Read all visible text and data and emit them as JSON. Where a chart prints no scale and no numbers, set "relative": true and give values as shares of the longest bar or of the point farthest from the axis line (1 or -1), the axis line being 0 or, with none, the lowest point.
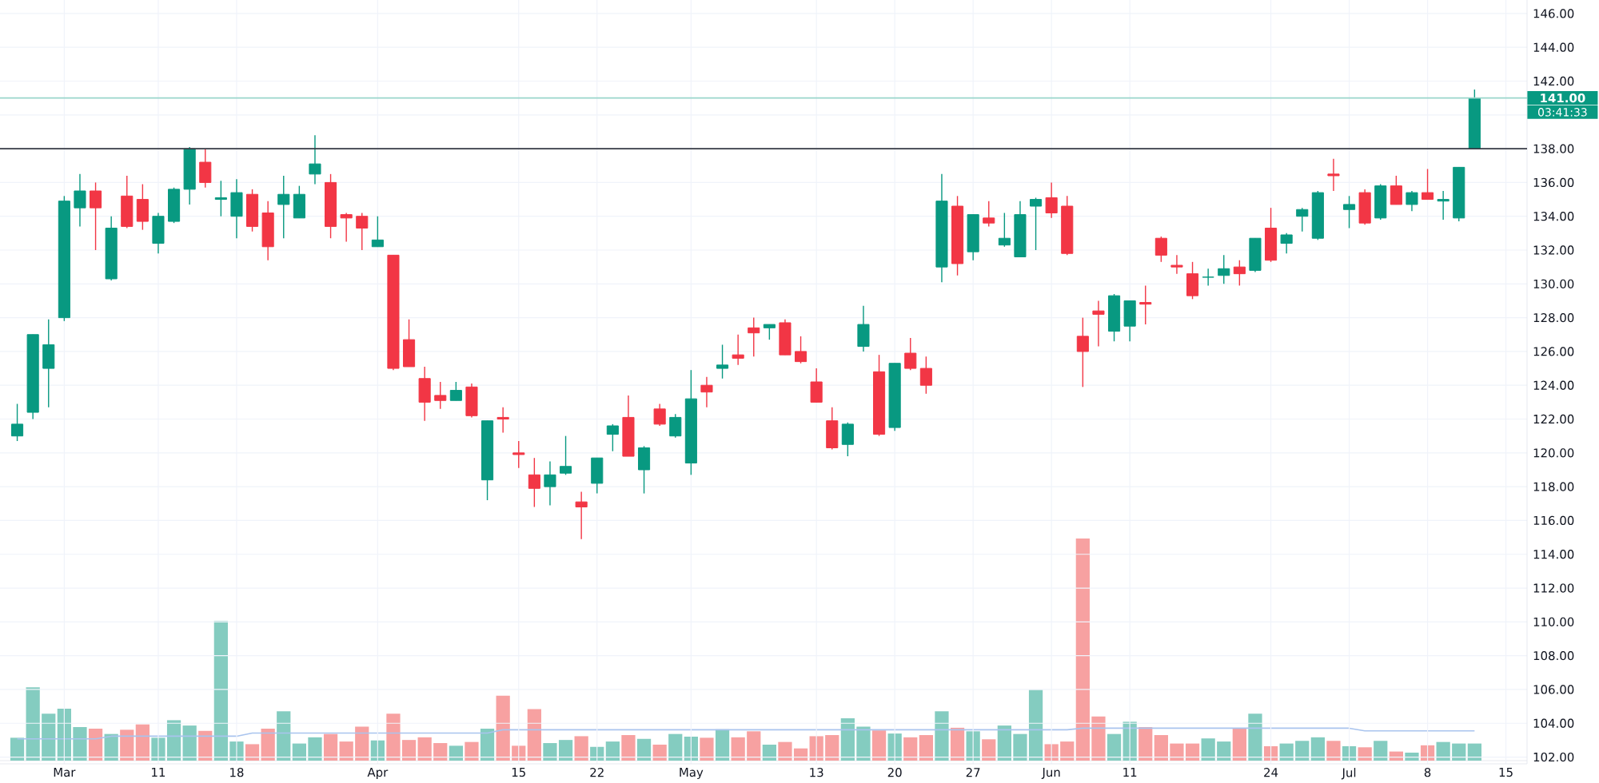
{
  "chart_data": [
    {
      "type": "candlestick",
      "categories": [
        null,
        null,
        null,
        "Mar",
        null,
        null,
        null,
        null,
        null,
        "11",
        null,
        null,
        null,
        null,
        "18",
        null,
        null,
        null,
        null,
        null,
        null,
        null,
        null,
        "Apr",
        null,
        null,
        null,
        null,
        null,
        null,
        null,
        null,
        "15",
        null,
        null,
        null,
        null,
        "22",
        null,
        null,
        null,
        null,
        null,
        "May",
        null,
        null,
        null,
        null,
        null,
        null,
        null,
        "13",
        null,
        null,
        null,
        null,
        "20",
        null,
        null,
        null,
        null,
        "27",
        null,
        null,
        null,
        null,
        "Jun",
        null,
        null,
        null,
        null,
        "11",
        null,
        null,
        null,
        null,
        null,
        null,
        null,
        null,
        "24",
        null,
        null,
        null,
        null,
        "Jul",
        null,
        null,
        null,
        null,
        "8",
        null,
        null,
        null,
        null,
        "15"
      ],
      "ohlc": [
        [
          121.0,
          122.9,
          120.7,
          121.7
        ],
        [
          122.4,
          127.0,
          122.0,
          127.0
        ],
        [
          125.0,
          127.9,
          122.7,
          126.4
        ],
        [
          128.0,
          135.2,
          127.8,
          134.9
        ],
        [
          134.5,
          136.5,
          133.4,
          135.5
        ],
        [
          135.5,
          136.0,
          132.0,
          134.5
        ],
        [
          130.3,
          134.0,
          130.2,
          133.3
        ],
        [
          135.2,
          136.4,
          133.3,
          133.4
        ],
        [
          135.0,
          135.9,
          133.2,
          133.7
        ],
        [
          132.4,
          134.2,
          131.8,
          134.0
        ],
        [
          133.7,
          135.7,
          133.6,
          135.6
        ],
        [
          135.6,
          138.1,
          134.7,
          138.0
        ],
        [
          137.2,
          138.0,
          135.7,
          136.0
        ],
        [
          135.0,
          136.1,
          134.0,
          135.1
        ],
        [
          134.0,
          136.2,
          132.7,
          135.4
        ],
        [
          135.3,
          135.6,
          133.1,
          133.4
        ],
        [
          134.2,
          134.9,
          131.4,
          132.2
        ],
        [
          134.7,
          136.4,
          132.7,
          135.3
        ],
        [
          133.9,
          135.8,
          133.9,
          135.3
        ],
        [
          136.5,
          138.8,
          135.9,
          137.1
        ],
        [
          136.0,
          136.5,
          132.7,
          133.4
        ],
        [
          134.1,
          134.2,
          132.5,
          133.9
        ],
        [
          134.0,
          134.2,
          132.0,
          133.3
        ],
        [
          132.2,
          134.0,
          132.2,
          132.6
        ],
        [
          131.7,
          131.7,
          124.9,
          125.0
        ],
        [
          126.7,
          127.9,
          125.1,
          125.1
        ],
        [
          124.4,
          125.1,
          121.9,
          123.0
        ],
        [
          123.4,
          124.2,
          122.6,
          123.1
        ],
        [
          123.1,
          124.2,
          123.1,
          123.7
        ],
        [
          123.9,
          124.1,
          122.1,
          122.2
        ],
        [
          118.4,
          121.9,
          117.2,
          121.9
        ],
        [
          122.1,
          122.7,
          121.2,
          122.0
        ],
        [
          120.0,
          120.7,
          119.1,
          119.9
        ],
        [
          118.7,
          119.7,
          116.8,
          117.9
        ],
        [
          118.0,
          119.5,
          116.9,
          118.7
        ],
        [
          118.8,
          121.0,
          118.7,
          119.2
        ],
        [
          117.1,
          117.7,
          114.9,
          116.8
        ],
        [
          118.2,
          119.7,
          117.6,
          119.7
        ],
        [
          121.1,
          121.7,
          120.1,
          121.6
        ],
        [
          122.1,
          123.4,
          119.8,
          119.8
        ],
        [
          119.0,
          120.4,
          117.6,
          120.3
        ],
        [
          122.6,
          122.9,
          121.6,
          121.7
        ],
        [
          121.0,
          122.3,
          120.9,
          122.1
        ],
        [
          119.4,
          124.9,
          118.7,
          123.2
        ],
        [
          124.0,
          124.5,
          122.7,
          123.6
        ],
        [
          125.0,
          126.4,
          124.4,
          125.2
        ],
        [
          125.8,
          127.0,
          125.2,
          125.6
        ],
        [
          127.4,
          128.0,
          125.7,
          127.1
        ],
        [
          127.4,
          127.6,
          126.7,
          127.6
        ],
        [
          127.7,
          127.9,
          125.8,
          125.8
        ],
        [
          126.0,
          126.9,
          125.3,
          125.4
        ],
        [
          124.2,
          125.0,
          123.0,
          123.0
        ],
        [
          121.9,
          122.7,
          120.2,
          120.3
        ],
        [
          120.5,
          121.8,
          119.8,
          121.7
        ],
        [
          126.3,
          128.7,
          126.0,
          127.6
        ],
        [
          124.8,
          125.8,
          121.0,
          121.1
        ],
        [
          121.5,
          125.3,
          121.3,
          125.3
        ],
        [
          125.9,
          126.8,
          124.9,
          125.0
        ],
        [
          125.0,
          125.7,
          123.5,
          124.0
        ],
        [
          131.0,
          136.5,
          130.1,
          134.9
        ],
        [
          134.6,
          135.2,
          130.5,
          131.2
        ],
        [
          131.9,
          134.1,
          131.4,
          134.1
        ],
        [
          133.9,
          134.9,
          133.4,
          133.6
        ],
        [
          132.3,
          134.2,
          132.2,
          132.7
        ],
        [
          131.6,
          134.9,
          131.6,
          134.1
        ],
        [
          134.6,
          135.1,
          132.0,
          135.0
        ],
        [
          135.1,
          136.0,
          133.9,
          134.2
        ],
        [
          134.6,
          135.2,
          131.7,
          131.8
        ],
        [
          126.9,
          128.0,
          123.9,
          126.0
        ],
        [
          128.4,
          129.0,
          126.3,
          128.2
        ],
        [
          127.2,
          129.4,
          126.6,
          129.3
        ],
        [
          127.5,
          129.0,
          126.6,
          129.0
        ],
        [
          128.9,
          129.9,
          127.6,
          128.8
        ],
        [
          132.7,
          132.8,
          131.3,
          131.7
        ],
        [
          131.1,
          131.7,
          130.6,
          131.0
        ],
        [
          130.6,
          131.3,
          129.1,
          129.3
        ],
        [
          130.4,
          130.9,
          129.9,
          130.4
        ],
        [
          130.5,
          131.7,
          130.0,
          130.9
        ],
        [
          131.0,
          131.4,
          129.9,
          130.6
        ],
        [
          130.8,
          132.7,
          130.7,
          132.7
        ],
        [
          133.3,
          134.5,
          131.3,
          131.4
        ],
        [
          132.4,
          133.0,
          131.8,
          132.9
        ],
        [
          134.0,
          134.5,
          133.1,
          134.4
        ],
        [
          132.7,
          135.5,
          132.6,
          135.4
        ],
        [
          136.5,
          137.4,
          135.5,
          136.4
        ],
        [
          134.4,
          135.2,
          133.3,
          134.7
        ],
        [
          135.4,
          135.6,
          133.5,
          133.6
        ],
        [
          133.9,
          135.9,
          133.8,
          135.8
        ],
        [
          135.8,
          136.4,
          134.7,
          134.7
        ],
        [
          134.7,
          135.5,
          134.3,
          135.4
        ],
        [
          135.4,
          136.8,
          135.0,
          135.0
        ],
        [
          134.9,
          135.5,
          133.8,
          135.0
        ],
        [
          133.9,
          136.9,
          133.7,
          136.9
        ],
        [
          138.0,
          141.5,
          138.0,
          141.0
        ],
        null,
        null
      ],
      "colors": [
        "#089981",
        "#089981",
        "#089981",
        "#089981",
        "#089981",
        "#f23645",
        "#089981",
        "#f23645",
        "#f23645",
        "#089981",
        "#089981",
        "#089981",
        "#f23645",
        "#089981",
        "#089981",
        "#f23645",
        "#f23645",
        "#089981",
        "#089981",
        "#089981",
        "#f23645",
        "#f23645",
        "#f23645",
        "#089981",
        "#f23645",
        "#f23645",
        "#f23645",
        "#f23645",
        "#089981",
        "#f23645",
        "#089981",
        "#f23645",
        "#f23645",
        "#f23645",
        "#089981",
        "#089981",
        "#f23645",
        "#089981",
        "#089981",
        "#f23645",
        "#089981",
        "#f23645",
        "#089981",
        "#089981",
        "#f23645",
        "#089981",
        "#f23645",
        "#f23645",
        "#089981",
        "#f23645",
        "#f23645",
        "#f23645",
        "#f23645",
        "#089981",
        "#089981",
        "#f23645",
        "#089981",
        "#f23645",
        "#f23645",
        "#089981",
        "#f23645",
        "#089981",
        "#f23645",
        "#089981",
        "#089981",
        "#089981",
        "#f23645",
        "#f23645",
        "#f23645",
        "#f23645",
        "#089981",
        "#089981",
        "#f23645",
        "#f23645",
        "#f23645",
        "#f23645",
        "#089981",
        "#089981",
        "#f23645",
        "#089981",
        "#f23645",
        "#089981",
        "#089981",
        "#089981",
        "#f23645",
        "#089981",
        "#f23645",
        "#089981",
        "#f23645",
        "#089981",
        "#f23645",
        "#089981",
        "#089981",
        "#089981",
        null,
        null
      ],
      "ylim": [
        101.6,
        146.8
      ],
      "yticks": [
        {
          "value": 102,
          "label": "102.00"
        },
        {
          "value": 104,
          "label": "104.00"
        },
        {
          "value": 106,
          "label": "106.00"
        },
        {
          "value": 108,
          "label": "108.00"
        },
        {
          "value": 110,
          "label": "110.00"
        },
        {
          "value": 112,
          "label": "112.00"
        },
        {
          "value": 114,
          "label": "114.00"
        },
        {
          "value": 116,
          "label": "116.00"
        },
        {
          "value": 118,
          "label": "118.00"
        },
        {
          "value": 120,
          "label": "120.00"
        },
        {
          "value": 122,
          "label": "122.00"
        },
        {
          "value": 124,
          "label": "124.00"
        },
        {
          "value": 126,
          "label": "126.00"
        },
        {
          "value": 128,
          "label": "128.00"
        },
        {
          "value": 130,
          "label": "130.00"
        },
        {
          "value": 132,
          "label": "132.00"
        },
        {
          "value": 134,
          "label": "134.00"
        },
        {
          "value": 136,
          "label": "136.00"
        },
        {
          "value": 138,
          "label": "138.00"
        },
        {
          "value": 140,
          "label": null
        },
        {
          "value": 142,
          "label": "142.00"
        },
        {
          "value": 144,
          "label": "144.00"
        },
        {
          "value": 146,
          "label": "146.00"
        }
      ],
      "grid": true,
      "ref_lines": [
        {
          "axis": "y",
          "value": 138,
          "color": "#363a45"
        },
        {
          "axis": "y",
          "value": 141,
          "label": "141.00",
          "color": "#9ad6cc"
        }
      ],
      "annotations": [
        "03:41:33"
      ]
    },
    {
      "type": "bar",
      "relative": true,
      "categories": [
        null,
        null,
        null,
        null,
        null,
        null,
        null,
        null,
        null,
        null,
        null,
        null,
        null,
        null,
        null,
        null,
        null,
        null,
        null,
        null,
        null,
        null,
        null,
        null,
        null,
        null,
        null,
        null,
        null,
        null,
        null,
        null,
        null,
        null,
        null,
        null,
        null,
        null,
        null,
        null,
        null,
        null,
        null,
        null,
        null,
        null,
        null,
        null,
        null,
        null,
        null,
        null,
        null,
        null,
        null,
        null,
        null,
        null,
        null,
        null,
        null,
        null,
        null,
        null,
        null,
        null,
        null,
        null,
        null,
        null,
        null,
        null,
        null,
        null,
        null,
        null,
        null,
        null,
        null,
        null,
        null,
        null,
        null,
        null,
        null,
        null,
        null,
        null,
        null,
        null,
        null,
        null,
        null,
        null,
        null,
        null
      ],
      "series": [
        {
          "values": [
            0.103,
            0.33,
            0.211,
            0.234,
            0.151,
            0.144,
            0.12,
            0.139,
            0.163,
            0.103,
            0.182,
            0.158,
            0.134,
            0.629,
            0.086,
            0.074,
            0.144,
            0.222,
            0.077,
            0.105,
            0.12,
            0.086,
            0.153,
            0.091,
            0.211,
            0.093,
            0.105,
            0.079,
            0.067,
            0.084,
            0.144,
            0.292,
            0.067,
            0.232,
            0.079,
            0.093,
            0.11,
            0.062,
            0.086,
            0.115,
            0.098,
            0.072,
            0.12,
            0.108,
            0.103,
            0.141,
            0.105,
            0.132,
            0.072,
            0.084,
            0.055,
            0.11,
            0.115,
            0.191,
            0.153,
            0.136,
            0.122,
            0.105,
            0.115,
            0.222,
            0.148,
            0.132,
            0.096,
            0.158,
            0.12,
            0.318,
            0.074,
            0.086,
            1,
            0.199,
            0.12,
            0.175,
            0.151,
            0.115,
            0.077,
            0.077,
            0.1,
            0.086,
            0.144,
            0.211,
            0.065,
            0.077,
            0.089,
            0.105,
            0.089,
            0.065,
            0.06,
            0.089,
            0.041,
            0.036,
            0.069,
            0.084,
            0.077,
            0.077,
            null,
            null
          ],
          "colors": [
            "#84ccc0",
            "#84ccc0",
            "#84ccc0",
            "#84ccc0",
            "#84ccc0",
            "#f7a1a1",
            "#84ccc0",
            "#f7a1a1",
            "#f7a1a1",
            "#84ccc0",
            "#84ccc0",
            "#84ccc0",
            "#f7a1a1",
            "#84ccc0",
            "#84ccc0",
            "#f7a1a1",
            "#f7a1a1",
            "#84ccc0",
            "#84ccc0",
            "#84ccc0",
            "#f7a1a1",
            "#f7a1a1",
            "#f7a1a1",
            "#84ccc0",
            "#f7a1a1",
            "#f7a1a1",
            "#f7a1a1",
            "#f7a1a1",
            "#84ccc0",
            "#f7a1a1",
            "#84ccc0",
            "#f7a1a1",
            "#f7a1a1",
            "#f7a1a1",
            "#84ccc0",
            "#84ccc0",
            "#f7a1a1",
            "#84ccc0",
            "#84ccc0",
            "#f7a1a1",
            "#84ccc0",
            "#f7a1a1",
            "#84ccc0",
            "#84ccc0",
            "#f7a1a1",
            "#84ccc0",
            "#f7a1a1",
            "#f7a1a1",
            "#84ccc0",
            "#f7a1a1",
            "#f7a1a1",
            "#f7a1a1",
            "#f7a1a1",
            "#84ccc0",
            "#84ccc0",
            "#f7a1a1",
            "#84ccc0",
            "#f7a1a1",
            "#f7a1a1",
            "#84ccc0",
            "#f7a1a1",
            "#84ccc0",
            "#f7a1a1",
            "#84ccc0",
            "#84ccc0",
            "#84ccc0",
            "#f7a1a1",
            "#f7a1a1",
            "#f7a1a1",
            "#f7a1a1",
            "#84ccc0",
            "#84ccc0",
            "#f7a1a1",
            "#f7a1a1",
            "#f7a1a1",
            "#f7a1a1",
            "#84ccc0",
            "#84ccc0",
            "#f7a1a1",
            "#84ccc0",
            "#f7a1a1",
            "#84ccc0",
            "#84ccc0",
            "#84ccc0",
            "#f7a1a1",
            "#84ccc0",
            "#f7a1a1",
            "#84ccc0",
            "#f7a1a1",
            "#84ccc0",
            "#f7a1a1",
            "#84ccc0",
            "#84ccc0",
            "#84ccc0",
            null,
            null
          ]
        },
        {
          "type": "line",
          "color": "#a9c4ee",
          "values": [
            0.098,
            0.098,
            0.098,
            0.098,
            0.098,
            0.098,
            0.11,
            0.11,
            0.11,
            0.11,
            0.11,
            0.11,
            0.11,
            0.11,
            0.11,
            0.124,
            0.124,
            0.124,
            0.124,
            0.124,
            0.124,
            0.124,
            0.124,
            0.124,
            0.124,
            0.124,
            0.124,
            0.124,
            0.124,
            0.124,
            0.124,
            0.139,
            0.139,
            0.139,
            0.139,
            0.139,
            0.139,
            0.139,
            0.139,
            0.139,
            0.139,
            0.139,
            0.139,
            0.139,
            0.139,
            0.139,
            0.139,
            0.139,
            0.139,
            0.139,
            0.139,
            0.139,
            0.139,
            0.139,
            0.139,
            0.139,
            0.139,
            0.139,
            0.139,
            0.139,
            0.139,
            0.139,
            0.139,
            0.139,
            0.139,
            0.139,
            0.139,
            0.139,
            0.146,
            0.146,
            0.146,
            0.146,
            0.146,
            0.146,
            0.146,
            0.146,
            0.146,
            0.146,
            0.146,
            0.146,
            0.146,
            0.146,
            0.146,
            0.146,
            0.146,
            0.146,
            0.134,
            0.134,
            0.134,
            0.134,
            0.134,
            0.134,
            0.134,
            0.134,
            null,
            null
          ]
        }
      ]
    }
  ]
}
